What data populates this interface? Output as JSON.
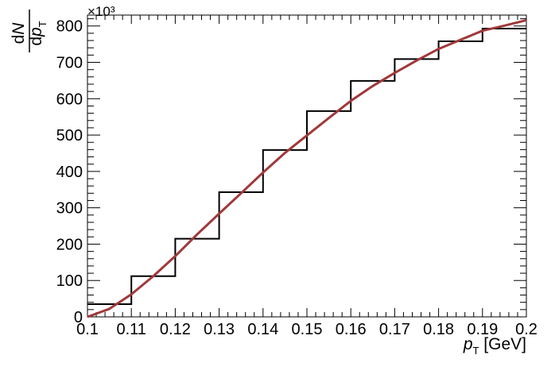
{
  "chart_data": {
    "type": "line",
    "title": "",
    "xlabel": "p_T [GeV]",
    "ylabel": "dN/dp_T",
    "y_multiplier_label": "×10³",
    "xlim": [
      0.1,
      0.2
    ],
    "ylim": [
      0,
      830
    ],
    "x_ticks": [
      "0.1",
      "0.11",
      "0.12",
      "0.13",
      "0.14",
      "0.15",
      "0.16",
      "0.17",
      "0.18",
      "0.19",
      "0.2"
    ],
    "y_ticks": [
      "0",
      "100",
      "200",
      "300",
      "400",
      "500",
      "600",
      "700",
      "800"
    ],
    "grid": false,
    "legend": "none",
    "series": [
      {
        "kind": "histogram",
        "color": "#000000",
        "bin_edges": [
          0.1,
          0.11,
          0.12,
          0.13,
          0.14,
          0.15,
          0.16,
          0.17,
          0.18,
          0.19,
          0.2
        ],
        "values": [
          35,
          112,
          215,
          343,
          459,
          566,
          649,
          709,
          758,
          793
        ]
      },
      {
        "kind": "curve",
        "color": "#a0383a",
        "x": [
          0.1,
          0.105,
          0.11,
          0.115,
          0.12,
          0.125,
          0.13,
          0.135,
          0.14,
          0.145,
          0.15,
          0.155,
          0.16,
          0.165,
          0.17,
          0.175,
          0.18,
          0.185,
          0.19,
          0.195,
          0.2
        ],
        "y": [
          0,
          22,
          62,
          112,
          167,
          227,
          284,
          340,
          397,
          451,
          499,
          547,
          594,
          635,
          671,
          705,
          737,
          762,
          787,
          801,
          816
        ]
      }
    ]
  }
}
